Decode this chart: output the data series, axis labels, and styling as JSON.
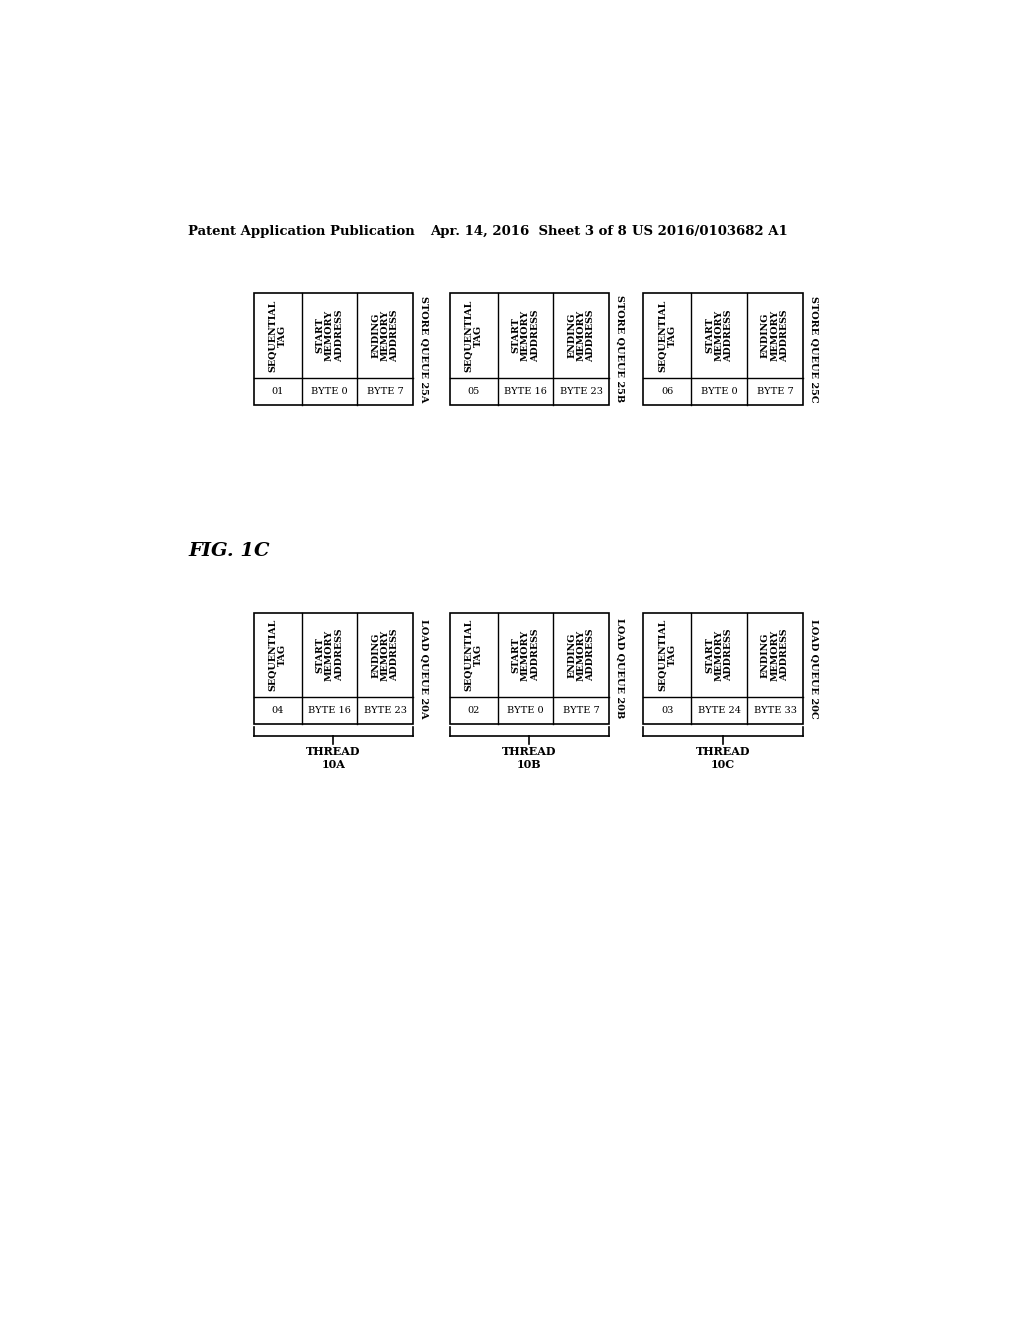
{
  "title_left": "Patent Application Publication",
  "title_mid": "Apr. 14, 2016  Sheet 3 of 8",
  "title_right": "US 2016/0103682 A1",
  "fig_label": "FIG. 1C",
  "background_color": "#ffffff",
  "threads": [
    {
      "id": "THREAD\n10A",
      "load_queue": {
        "label": "LOAD QUEUE 20A",
        "sequential_tag_value": "04",
        "start_value": "BYTE 16",
        "ending_value": "BYTE 23"
      },
      "store_queue": {
        "label": "STORE QUEUE 25A",
        "sequential_tag_value": "01",
        "start_value": "BYTE 0",
        "ending_value": "BYTE 7"
      }
    },
    {
      "id": "THREAD\n10B",
      "load_queue": {
        "label": "LOAD QUEUE 20B",
        "sequential_tag_value": "02",
        "start_value": "BYTE 0",
        "ending_value": "BYTE 7"
      },
      "store_queue": {
        "label": "STORE QUEUE 25B",
        "sequential_tag_value": "05",
        "start_value": "BYTE 16",
        "ending_value": "BYTE 23"
      }
    },
    {
      "id": "THREAD\n10C",
      "load_queue": {
        "label": "LOAD QUEUE 20C",
        "sequential_tag_value": "03",
        "start_value": "BYTE 24",
        "ending_value": "BYTE 33"
      },
      "store_queue": {
        "label": "STORE QUEUE 25C",
        "sequential_tag_value": "06",
        "start_value": "BYTE 0",
        "ending_value": "BYTE 7"
      }
    }
  ],
  "col_headers": [
    "SEQUENTIAL\nTAG",
    "START\nMEMORY\nADDRESS",
    "ENDING\nMEMORY\nADDRESS"
  ]
}
